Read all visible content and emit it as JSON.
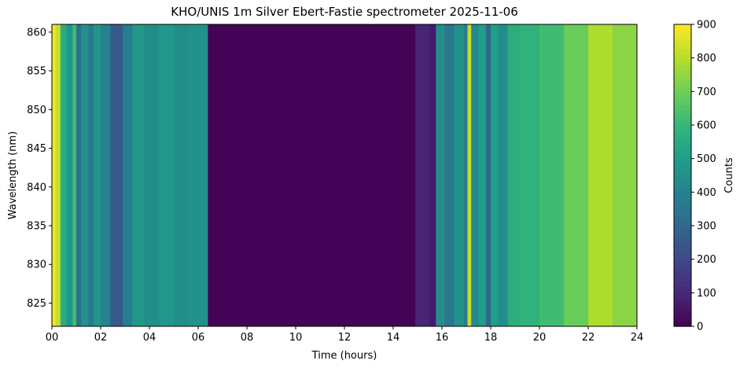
{
  "chart_data": {
    "type": "heatmap",
    "title": "KHO/UNIS 1m Silver Ebert-Fastie spectrometer 2025-11-06",
    "xlabel": "Time (hours)",
    "ylabel": "Wavelength (nm)",
    "xlim": [
      0,
      24
    ],
    "ylim": [
      822,
      861
    ],
    "xticks": [
      0,
      2,
      4,
      6,
      8,
      10,
      12,
      14,
      16,
      18,
      20,
      22,
      24
    ],
    "xtick_labels": [
      "00",
      "02",
      "04",
      "06",
      "08",
      "10",
      "12",
      "14",
      "16",
      "18",
      "20",
      "22",
      "24"
    ],
    "yticks": [
      825,
      830,
      835,
      840,
      845,
      850,
      855,
      860
    ],
    "ytick_labels": [
      "825",
      "830",
      "835",
      "840",
      "845",
      "850",
      "855",
      "860"
    ],
    "colorbar": {
      "label": "Counts",
      "colormap": "viridis",
      "range": [
        0,
        900
      ],
      "ticks": [
        0,
        100,
        200,
        300,
        400,
        500,
        600,
        700,
        800,
        900
      ],
      "tick_labels": [
        "0",
        "100",
        "200",
        "300",
        "400",
        "500",
        "600",
        "700",
        "800",
        "900"
      ]
    },
    "grid": false,
    "hour_columns": [
      {
        "hours": [
          0.0,
          0.15
        ],
        "counts": 880
      },
      {
        "hours": [
          0.15,
          0.35
        ],
        "counts": 820
      },
      {
        "hours": [
          0.35,
          0.6
        ],
        "counts": 560
      },
      {
        "hours": [
          0.6,
          0.85
        ],
        "counts": 470
      },
      {
        "hours": [
          0.85,
          1.0
        ],
        "counts": 620
      },
      {
        "hours": [
          1.0,
          1.2
        ],
        "counts": 330
      },
      {
        "hours": [
          1.2,
          1.5
        ],
        "counts": 450
      },
      {
        "hours": [
          1.5,
          1.7
        ],
        "counts": 360
      },
      {
        "hours": [
          1.7,
          2.0
        ],
        "counts": 470
      },
      {
        "hours": [
          2.0,
          2.4
        ],
        "counts": 400
      },
      {
        "hours": [
          2.4,
          2.9
        ],
        "counts": 250
      },
      {
        "hours": [
          2.9,
          3.3
        ],
        "counts": 380
      },
      {
        "hours": [
          3.3,
          3.8
        ],
        "counts": 480
      },
      {
        "hours": [
          3.8,
          4.4
        ],
        "counts": 440
      },
      {
        "hours": [
          4.4,
          5.0
        ],
        "counts": 480
      },
      {
        "hours": [
          5.0,
          5.6
        ],
        "counts": 440
      },
      {
        "hours": [
          5.6,
          6.4
        ],
        "counts": 460
      },
      {
        "hours": [
          6.4,
          14.9
        ],
        "counts": 5
      },
      {
        "hours": [
          14.9,
          15.5
        ],
        "counts": 90
      },
      {
        "hours": [
          15.5,
          15.75
        ],
        "counts": 60
      },
      {
        "hours": [
          15.75,
          16.1
        ],
        "counts": 440
      },
      {
        "hours": [
          16.1,
          16.5
        ],
        "counts": 360
      },
      {
        "hours": [
          16.5,
          16.9
        ],
        "counts": 460
      },
      {
        "hours": [
          16.9,
          17.05
        ],
        "counts": 380
      },
      {
        "hours": [
          17.05,
          17.2
        ],
        "counts": 820
      },
      {
        "hours": [
          17.2,
          17.5
        ],
        "counts": 420
      },
      {
        "hours": [
          17.5,
          17.8
        ],
        "counts": 500
      },
      {
        "hours": [
          17.8,
          18.0
        ],
        "counts": 300
      },
      {
        "hours": [
          18.0,
          18.3
        ],
        "counts": 500
      },
      {
        "hours": [
          18.3,
          18.7
        ],
        "counts": 440
      },
      {
        "hours": [
          18.7,
          19.2
        ],
        "counts": 560
      },
      {
        "hours": [
          19.2,
          20.0
        ],
        "counts": 580
      },
      {
        "hours": [
          20.0,
          21.0
        ],
        "counts": 620
      },
      {
        "hours": [
          21.0,
          22.0
        ],
        "counts": 690
      },
      {
        "hours": [
          22.0,
          23.0
        ],
        "counts": 790
      },
      {
        "hours": [
          23.0,
          24.0
        ],
        "counts": 740
      }
    ]
  }
}
